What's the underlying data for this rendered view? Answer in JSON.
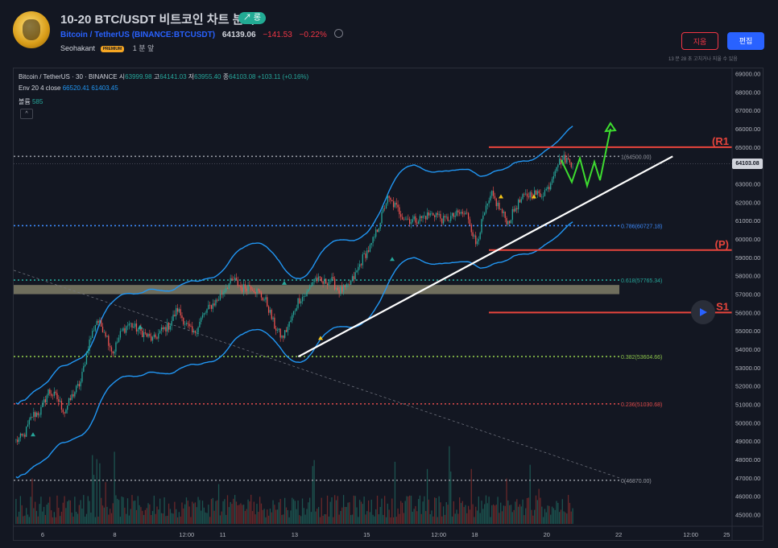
{
  "header": {
    "title": "10-20 BTC/USDT 비트코인 차트 분석",
    "trend_badge": "↗ 롱",
    "symbol_name": "Bitcoin / TetherUS",
    "symbol_exchange": "(BINANCE:BTCUSDT)",
    "last_price": "64139.06",
    "change": "−141.53",
    "change_pct": "−0.22%",
    "author": "Seohakant",
    "premium_label": "PREMIUM",
    "time_ago": "1 분 앞",
    "delete_label": "지움",
    "edit_label": "편집",
    "edit_note": "13 분 28 초 고치거나 지울 수 있음"
  },
  "legend": {
    "symbol": "Bitcoin / TetherUS · 30 · BINANCE",
    "o_label": "시",
    "o": "63999.98",
    "h_label": "고",
    "h": "64141.03",
    "l_label": "저",
    "l": "63955.40",
    "c_label": "종",
    "c": "64103.08",
    "chg": "+103.11 (+0.16%)",
    "env_label": "Env 20 4 close",
    "env_upper": "66520.41",
    "env_lower": "61403.45",
    "vol_label": "볼륨",
    "vol": "585",
    "collapse": "^"
  },
  "colors": {
    "background": "#131722",
    "up": "#26a69a",
    "down": "#ef5350",
    "envelope": "#2196f3",
    "level_red": "#e8453c",
    "trendline": "#ffffff",
    "projection": "#3ddc2f",
    "accent": "#2962ff"
  },
  "chart_data": {
    "type": "candlestick",
    "symbol": "BTCUSDT",
    "timeframe": "30",
    "y_axis": {
      "min": 44500,
      "max": 69200,
      "ticks": [
        45000,
        46000,
        47000,
        48000,
        49000,
        50000,
        51000,
        52000,
        53000,
        54000,
        55000,
        56000,
        57000,
        58000,
        59000,
        60000,
        61000,
        62000,
        63000,
        64000,
        65000,
        66000,
        67000,
        68000,
        69000
      ]
    },
    "x_axis": {
      "ticks": [
        "6",
        "8",
        "12:00",
        "11",
        "13",
        "15",
        "12:00",
        "18",
        "20",
        "22",
        "12:00",
        "25"
      ]
    },
    "current_price_label": "64103.08",
    "close_path": [
      49000,
      49300,
      50400,
      50600,
      51700,
      51400,
      50600,
      51500,
      52200,
      54300,
      55600,
      55000,
      53800,
      54900,
      55400,
      55100,
      54800,
      54500,
      55000,
      55300,
      56200,
      55400,
      54800,
      55700,
      56300,
      56700,
      57400,
      57800,
      57300,
      57500,
      57100,
      56600,
      55300,
      54600,
      55500,
      56700,
      57000,
      57900,
      57600,
      57800,
      57200,
      57300,
      58000,
      59000,
      59600,
      60800,
      62200,
      61800,
      61200,
      61000,
      61100,
      61300,
      61400,
      61000,
      61200,
      61400,
      61300,
      59700,
      61300,
      62400,
      61600,
      60900,
      61800,
      62300,
      62500,
      62400,
      62800,
      64100,
      64400,
      64100
    ],
    "fib_levels": [
      {
        "label": "1(64500.00)",
        "value": 64500
      },
      {
        "label": "0.786(60727.18)",
        "value": 60727.18
      },
      {
        "label": "0.618(57765.34)",
        "value": 57765.34
      },
      {
        "label": "0.382(53604.66)",
        "value": 53604.66
      },
      {
        "label": "0.236(51030.68)",
        "value": 51030.68
      },
      {
        "label": "0(46870.00)",
        "value": 46870
      }
    ],
    "levels": [
      {
        "label": "(R1",
        "value": 65000
      },
      {
        "label": "(P)",
        "value": 59400
      },
      {
        "label": "S1",
        "value": 56000
      }
    ],
    "zone": {
      "from": 57000,
      "to": 57500
    },
    "trendline": {
      "from": {
        "day": 13.1,
        "price": 53600
      },
      "to": {
        "day": 23.5,
        "price": 64500
      }
    },
    "projection_target": 66000
  }
}
